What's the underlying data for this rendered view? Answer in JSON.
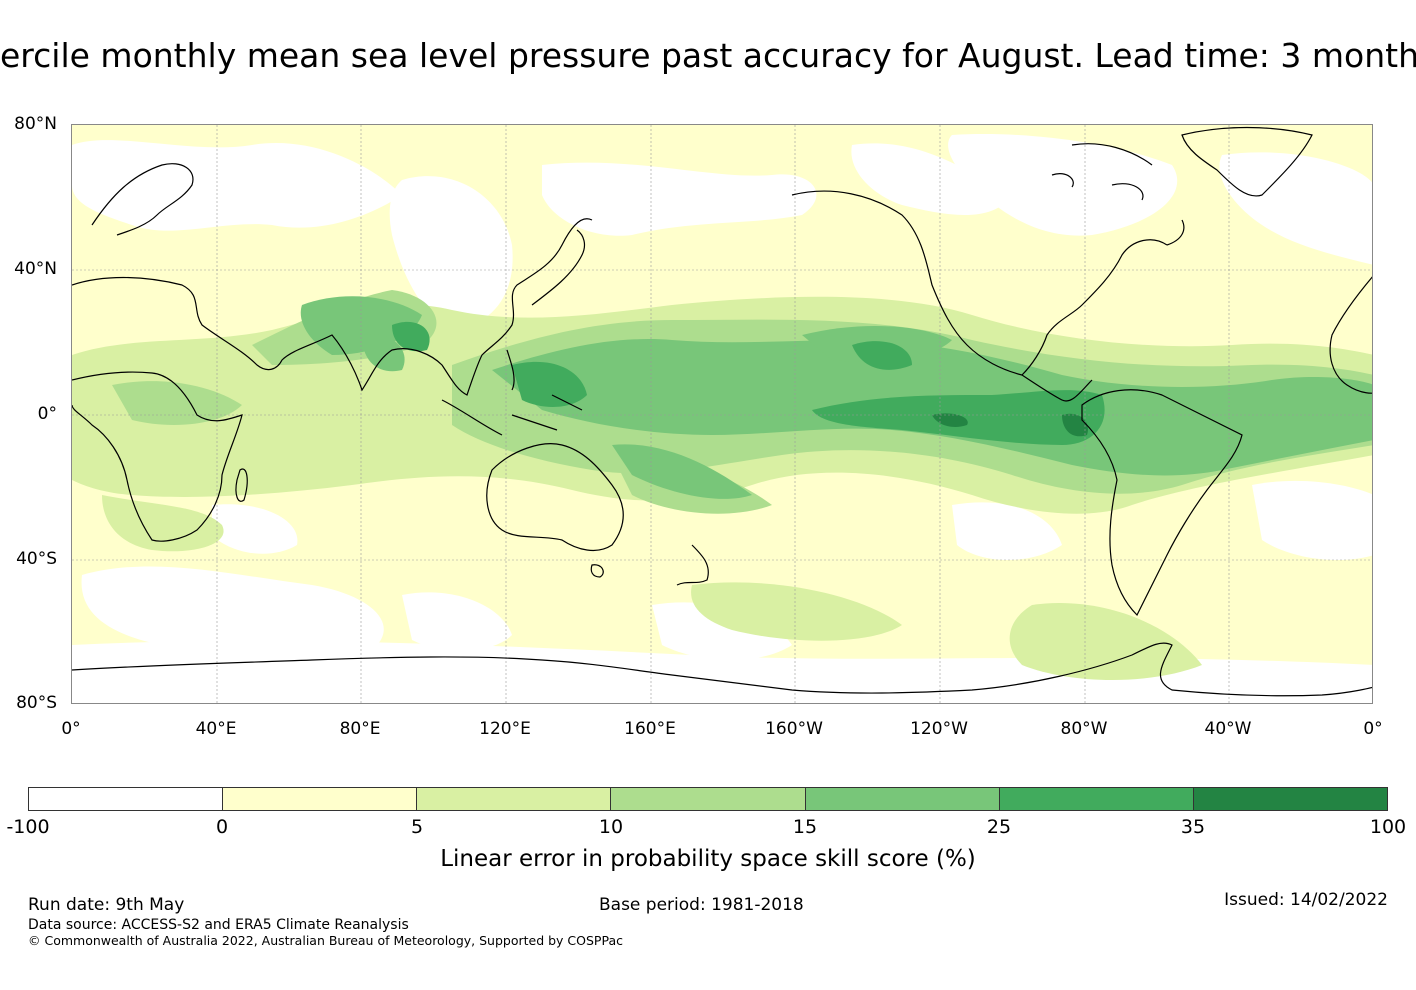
{
  "title": "ercile monthly mean sea level pressure past accuracy for August. Lead time: 3 month",
  "map": {
    "lat_labels": [
      "80°N",
      "40°N",
      "0°",
      "40°S",
      "80°S"
    ],
    "lon_labels": [
      "0°",
      "40°E",
      "80°E",
      "120°E",
      "160°E",
      "160°W",
      "120°W",
      "80°W",
      "40°W",
      "0°"
    ],
    "land_outline_color": "#000000",
    "gridline_color": "#9a9a9a"
  },
  "colorbar": {
    "ticks": [
      "-100",
      "0",
      "5",
      "10",
      "15",
      "25",
      "35",
      "100"
    ],
    "colors": [
      "#ffffff",
      "#ffffcc",
      "#d9f0a3",
      "#addd8e",
      "#78c679",
      "#41ab5d",
      "#238443"
    ],
    "label": "Linear error in probability space skill score (%)"
  },
  "footer": {
    "run_date": "Run date: 9th May",
    "base_period": "Base period: 1981-2018",
    "issued": "Issued: 14/02/2022",
    "data_source": "Data source: ACCESS-S2 and ERA5 Climate Reanalysis",
    "copyright": "© Commonwealth of Australia 2022, Australian Bureau of Meteorology, Supported by COSPPac"
  }
}
